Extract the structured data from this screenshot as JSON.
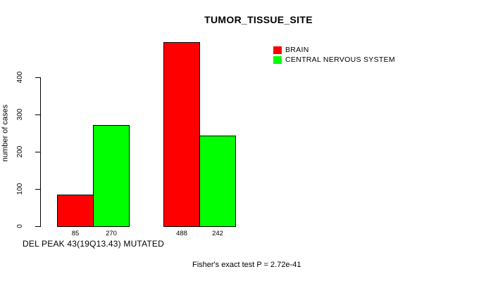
{
  "title": "TUMOR_TISSUE_SITE",
  "legend": {
    "items": [
      {
        "label": "BRAIN",
        "color": "#ff0000"
      },
      {
        "label": "CENTRAL NERVOUS SYSTEM",
        "color": "#00ff00"
      }
    ]
  },
  "y_axis": {
    "label": "number of cases",
    "ticks": [
      "0",
      "100",
      "200",
      "300",
      "400"
    ]
  },
  "x_axis": {
    "caption": "DEL PEAK 43(19Q13.43) MUTATED"
  },
  "footer": {
    "stat_text": "Fisher's exact test P = 2.72e-41"
  },
  "colors": {
    "bar_red": "#ff0000",
    "bar_green": "#00ff00",
    "axis": "#000000",
    "background": "#ffffff"
  },
  "chart_data": {
    "type": "bar",
    "title": "TUMOR_TISSUE_SITE",
    "xlabel": "DEL PEAK 43(19Q13.43) MUTATED",
    "ylabel": "number of cases",
    "ylim": [
      0,
      500
    ],
    "yticks": [
      0,
      100,
      200,
      300,
      400
    ],
    "grid": false,
    "legend_position": "top-right",
    "categories": [
      "",
      ""
    ],
    "series": [
      {
        "name": "BRAIN",
        "color": "#ff0000",
        "values": [
          85,
          488
        ]
      },
      {
        "name": "CENTRAL NERVOUS SYSTEM",
        "color": "#00ff00",
        "values": [
          270,
          242
        ]
      }
    ],
    "bars": [
      {
        "label": "85",
        "value": 85,
        "series": "BRAIN",
        "color": "#ff0000"
      },
      {
        "label": "270",
        "value": 270,
        "series": "CENTRAL NERVOUS SYSTEM",
        "color": "#00ff00"
      },
      {
        "label": "488",
        "value": 488,
        "series": "BRAIN",
        "color": "#ff0000"
      },
      {
        "label": "242",
        "value": 242,
        "series": "CENTRAL NERVOUS SYSTEM",
        "color": "#00ff00"
      }
    ],
    "annotation": "Fisher's exact test P = 2.72e-41"
  }
}
